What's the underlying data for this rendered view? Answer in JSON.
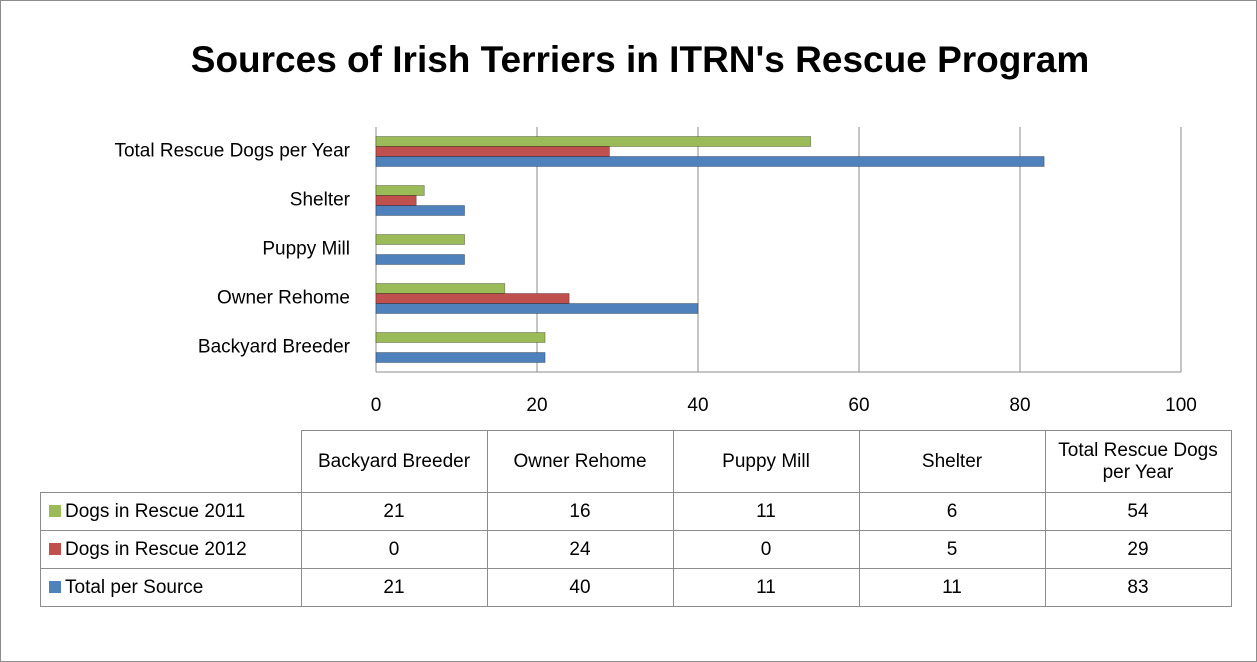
{
  "chart_data": {
    "type": "bar",
    "orientation": "horizontal",
    "title": "Sources of Irish Terriers in ITRN's Rescue Program",
    "categories": [
      "Backyard Breeder",
      "Owner Rehome",
      "Puppy Mill",
      "Shelter",
      "Total Rescue Dogs per Year"
    ],
    "series": [
      {
        "name": "Dogs in Rescue 2011",
        "color": "#9bbb59",
        "values": [
          21,
          16,
          11,
          6,
          54
        ]
      },
      {
        "name": "Dogs in Rescue 2012",
        "color": "#c0504d",
        "values": [
          0,
          24,
          0,
          5,
          29
        ]
      },
      {
        "name": "Total per Source",
        "color": "#4f81bd",
        "values": [
          21,
          40,
          11,
          11,
          83
        ]
      }
    ],
    "xlim": [
      0,
      100
    ],
    "xticks": [
      0,
      20,
      40,
      60,
      80,
      100
    ],
    "grid": true,
    "data_table": true
  }
}
